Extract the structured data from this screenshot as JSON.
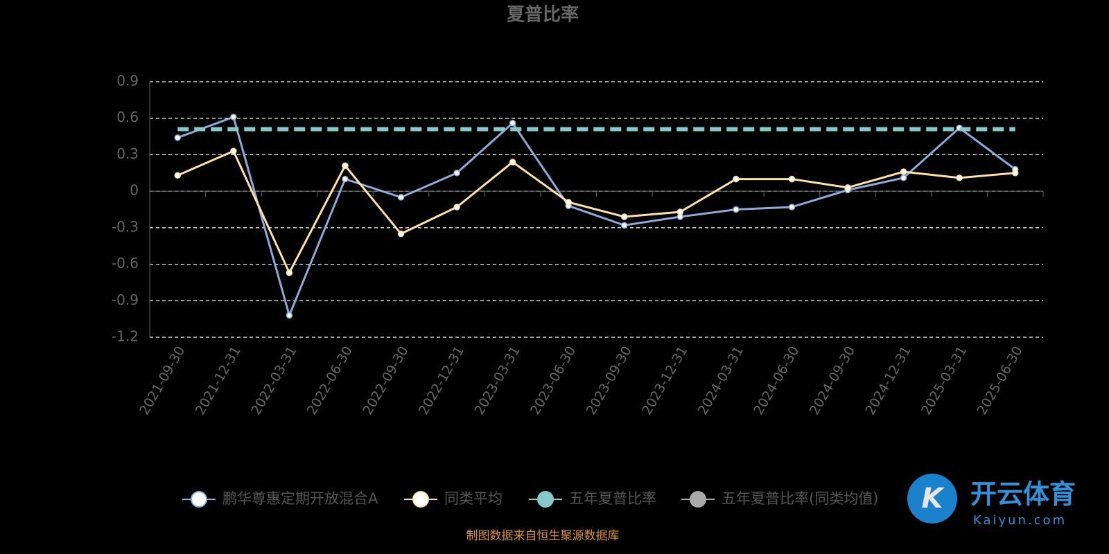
{
  "chart_data": {
    "type": "line",
    "title": "夏普比率",
    "categories": [
      "2021-09-30",
      "2021-12-31",
      "2022-03-31",
      "2022-06-30",
      "2022-09-30",
      "2022-12-31",
      "2023-03-31",
      "2023-06-30",
      "2023-09-30",
      "2023-12-31",
      "2024-03-31",
      "2024-06-30",
      "2024-09-30",
      "2024-12-31",
      "2025-03-31",
      "2025-06-30"
    ],
    "series": [
      {
        "name": "鹏华尊惠定期开放混合A",
        "color": "#8fa9d8",
        "values": [
          0.44,
          0.61,
          -1.02,
          0.1,
          -0.05,
          0.15,
          0.56,
          -0.12,
          -0.28,
          -0.21,
          -0.15,
          -0.13,
          0.01,
          0.11,
          0.52,
          0.18
        ]
      },
      {
        "name": "同类平均",
        "color": "#ffe0a8",
        "values": [
          0.13,
          0.33,
          -0.67,
          0.21,
          -0.35,
          -0.13,
          0.24,
          -0.09,
          -0.21,
          -0.17,
          0.1,
          0.1,
          0.03,
          0.16,
          0.11,
          0.15
        ]
      },
      {
        "name": "五年夏普比率",
        "color": "#88c8c8",
        "value": 0.51
      },
      {
        "name": "五年夏普比率(同类均值)",
        "color": "#aaaaaa"
      }
    ],
    "ylim": [
      -1.2,
      0.9
    ],
    "yticks": [
      -1.2,
      -0.9,
      -0.6,
      -0.3,
      0,
      0.3,
      0.6,
      0.9
    ],
    "grid": true,
    "footer": "制图数据来自恒生聚源数据库",
    "watermark": {
      "name": "开云体育",
      "url": "Kaiyun.com"
    }
  }
}
